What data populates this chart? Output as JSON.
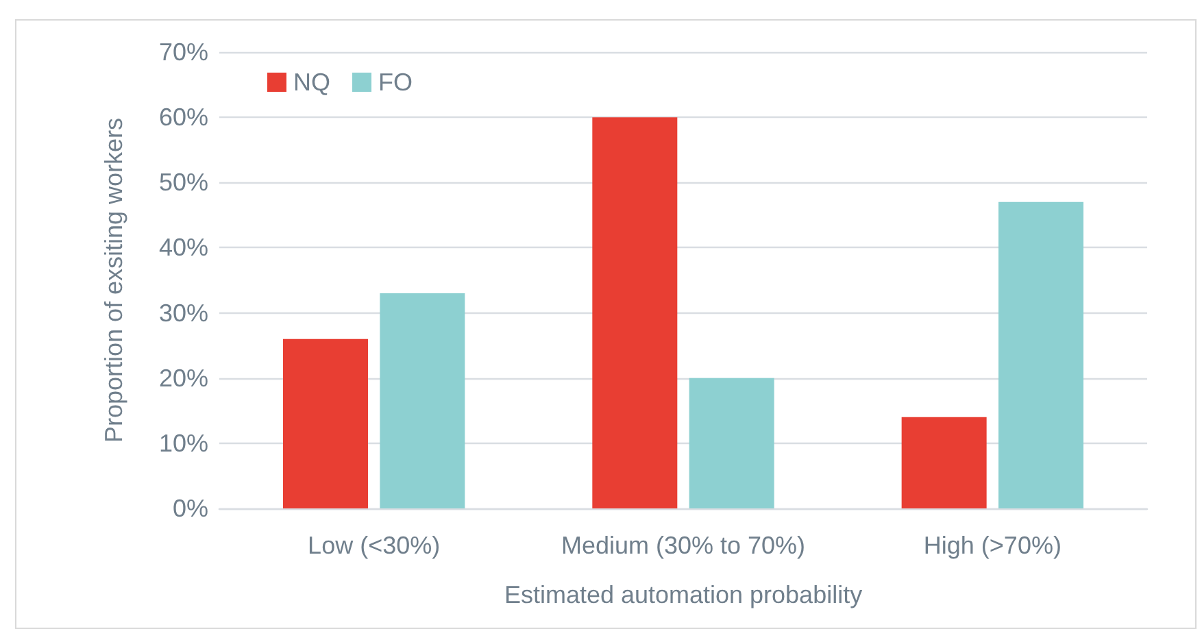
{
  "chart_data": {
    "type": "bar",
    "xlabel": "Estimated automation probability",
    "ylabel": "Proportion of exsiting workers",
    "categories": [
      "Low (<30%)",
      "Medium (30% to 70%)",
      "High (>70%)"
    ],
    "series": [
      {
        "name": "NQ",
        "color": "#e83e33",
        "values": [
          26,
          60,
          14
        ]
      },
      {
        "name": "FO",
        "color": "#8dd0d1",
        "values": [
          33,
          20,
          47
        ]
      }
    ],
    "ylim": [
      0,
      70
    ],
    "yticks": [
      {
        "value": 0,
        "label": "0%"
      },
      {
        "value": 10,
        "label": "10%"
      },
      {
        "value": 20,
        "label": "20%"
      },
      {
        "value": 30,
        "label": "30%"
      },
      {
        "value": 40,
        "label": "40%"
      },
      {
        "value": 50,
        "label": "50%"
      },
      {
        "value": 60,
        "label": "60%"
      },
      {
        "value": 70,
        "label": "70%"
      }
    ],
    "grid": "y",
    "legend": "top left"
  }
}
